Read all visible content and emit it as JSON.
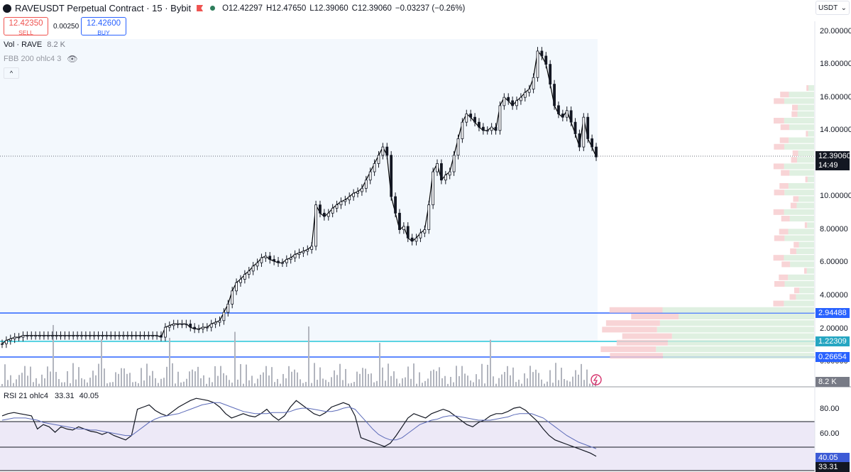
{
  "header": {
    "title": "RAVEUSDT Perpetual Contract · 15 · Bybit",
    "ohlc": {
      "open": "O12.42297",
      "high": "H12.47650",
      "low": "L12.39060",
      "close": "C12.39060",
      "change": "−0.03237 (−0.26%)"
    }
  },
  "trade": {
    "sell_price": "12.42350",
    "sell_label": "SELL",
    "spread": "0.00250",
    "buy_price": "12.42600",
    "buy_label": "BUY"
  },
  "indicators": {
    "volume": {
      "label": "Vol · RAVE",
      "value": "8.2 K"
    },
    "fbb": {
      "label": "FBB 200 ohlc4 3"
    },
    "rsi": {
      "label": "RSI 21 ohlc4",
      "value1": "33.31",
      "value2": "40.05"
    }
  },
  "price_axis": {
    "currency": "USDT",
    "ticks": [
      "20.00000",
      "18.00000",
      "16.00000",
      "14.00000",
      "10.00000",
      "8.00000",
      "6.00000",
      "4.00000",
      "2.00000",
      "0.00000"
    ],
    "current_price": "12.39060",
    "countdown": "14:49",
    "levels": [
      "2.94488",
      "1.22309",
      "0.26654"
    ],
    "volume_tag": "8.2 K"
  },
  "rsi_axis": {
    "ticks": [
      "80.00",
      "60.00"
    ],
    "tag1": "40.05",
    "tag2": "33.31"
  },
  "colors": {
    "up": "#26a69a",
    "down": "#ef5350",
    "level_line": "#2962ff",
    "mid_line": "#26c6da",
    "rsi_line": "#5b6ab8",
    "price_line": "#000000",
    "band_fill": "#f3f8fd"
  },
  "chart_data": [
    {
      "type": "line",
      "title": "RAVEUSDT Perpetual Contract · 15 · Bybit",
      "ylabel": "",
      "ylim": [
        0,
        20
      ],
      "series": [
        {
          "name": "",
          "values": [
            1.1,
            1.3,
            1.4,
            1.5,
            1.5,
            1.6,
            1.6,
            1.6,
            1.6,
            1.6,
            1.6,
            1.6,
            1.6,
            1.6,
            1.6,
            1.6,
            1.6,
            1.6,
            1.6,
            1.6,
            1.6,
            1.6,
            1.6,
            1.6,
            1.6,
            1.6,
            1.6,
            1.6,
            1.6,
            1.6,
            1.6,
            1.6,
            1.6,
            1.6,
            1.6,
            1.6,
            1.6,
            1.6,
            1.5,
            2.1,
            2.2,
            2.3,
            2.3,
            2.3,
            2.3,
            2.1,
            2.0,
            2.0,
            2.1,
            2.1,
            2.3,
            2.4,
            2.5,
            3.0,
            3.5,
            4.3,
            4.8,
            5.0,
            5.3,
            5.5,
            5.8,
            6.0,
            6.3,
            6.4,
            6.2,
            6.1,
            6.0,
            6.0,
            6.2,
            6.3,
            6.5,
            6.6,
            6.7,
            6.8,
            7.0,
            9.5,
            9.0,
            8.8,
            9.0,
            9.3,
            9.5,
            9.7,
            9.8,
            10.0,
            10.2,
            10.3,
            10.5,
            11.0,
            11.5,
            12.0,
            12.5,
            13.0,
            12.5,
            10.0,
            9.0,
            8.0,
            8.2,
            7.5,
            7.3,
            7.5,
            7.8,
            8.0,
            9.5,
            11.5,
            12.0,
            11.0,
            11.3,
            11.5,
            12.5,
            13.5,
            14.5,
            15.0,
            14.8,
            14.5,
            14.2,
            14.0,
            14.0,
            14.2,
            14.0,
            15.5,
            16.0,
            15.8,
            15.5,
            15.8,
            16.0,
            16.3,
            16.5,
            17.2,
            18.8,
            18.5,
            18.0,
            16.8,
            15.5,
            15.0,
            14.8,
            15.2,
            14.5,
            13.8,
            13.0,
            14.8,
            13.5,
            13.0,
            12.4
          ]
        }
      ]
    },
    {
      "type": "bar",
      "title": "Vol · RAVE",
      "series": [
        {
          "name": "",
          "values": [
            8.2
          ]
        }
      ]
    },
    {
      "type": "line",
      "title": "RSI 21 ohlc4",
      "ylim": [
        20,
        90
      ],
      "series": [
        {
          "name": "",
          "values": [
            70,
            72,
            73,
            72,
            71,
            70,
            58,
            62,
            60,
            55,
            60,
            58,
            57,
            60,
            58,
            56,
            55,
            53,
            55,
            52,
            50,
            48,
            52,
            76,
            78,
            80,
            75,
            72,
            70,
            74,
            78,
            81,
            84,
            86,
            85,
            84,
            82,
            78,
            72,
            68,
            70,
            72,
            70,
            69,
            72,
            76,
            70,
            66,
            70,
            78,
            84,
            80,
            76,
            72,
            70,
            73,
            78,
            80,
            82,
            80,
            70,
            50,
            48,
            46,
            44,
            42,
            45,
            52,
            60,
            68,
            72,
            70,
            68,
            72,
            74,
            76,
            74,
            70,
            66,
            62,
            60,
            64,
            66,
            70,
            72,
            72,
            74,
            77,
            78,
            75,
            70,
            65,
            58,
            52,
            48,
            46,
            44,
            42,
            40,
            38,
            36,
            33
          ]
        },
        {
          "name": "",
          "values": [
            66,
            67,
            68,
            68,
            68,
            67,
            66,
            64,
            63,
            62,
            61,
            60,
            59,
            58,
            58,
            57,
            57,
            56,
            55,
            54,
            53,
            52,
            52,
            56,
            60,
            64,
            67,
            69,
            70,
            71,
            72,
            74,
            76,
            78,
            80,
            81,
            82,
            82,
            80,
            78,
            76,
            74,
            73,
            72,
            72,
            72,
            73,
            73,
            73,
            74,
            76,
            77,
            77,
            76,
            75,
            74,
            74,
            75,
            77,
            78,
            76,
            70,
            64,
            58,
            53,
            50,
            48,
            48,
            50,
            54,
            58,
            62,
            64,
            66,
            67,
            69,
            70,
            70,
            69,
            68,
            67,
            66,
            66,
            66,
            67,
            68,
            69,
            71,
            72,
            72,
            72,
            70,
            68,
            64,
            60,
            56,
            52,
            49,
            46,
            44,
            42,
            40
          ]
        }
      ]
    }
  ]
}
